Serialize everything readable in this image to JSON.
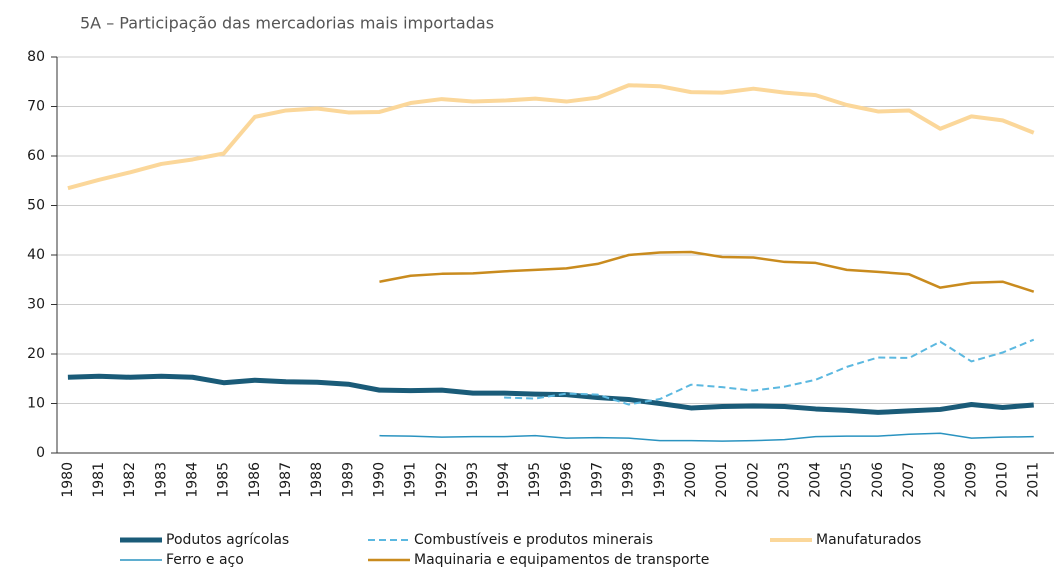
{
  "chart_data": {
    "type": "line",
    "title": "5A – Participação das mercadorias mais importadas",
    "categories": [
      "1980",
      "1981",
      "1982",
      "1983",
      "1984",
      "1985",
      "1986",
      "1987",
      "1988",
      "1989",
      "1990",
      "1991",
      "1992",
      "1993",
      "1994",
      "1995",
      "1996",
      "1997",
      "1998",
      "1999",
      "2000",
      "2001",
      "2002",
      "2003",
      "2004",
      "2005",
      "2006",
      "2007",
      "2008",
      "2009",
      "2010",
      "2011"
    ],
    "ylim": [
      0,
      80
    ],
    "yticks": [
      0,
      10,
      20,
      30,
      40,
      50,
      60,
      70,
      80
    ],
    "grid": true,
    "series": [
      {
        "name": "Podutos agrícolas",
        "color": "#1a5b78",
        "line_width": 5,
        "dashed": false,
        "values": [
          15.3,
          15.5,
          15.3,
          15.5,
          15.3,
          14.2,
          14.7,
          14.4,
          14.3,
          13.9,
          12.7,
          12.6,
          12.7,
          12.1,
          12.1,
          11.9,
          11.8,
          11.2,
          10.8,
          10.0,
          9.1,
          9.4,
          9.5,
          9.4,
          8.9,
          8.6,
          8.2,
          8.5,
          8.8,
          9.8,
          9.2,
          9.7
        ]
      },
      {
        "name": "Combustíveis e produtos minerais",
        "color": "#5bb8e0",
        "line_width": 2,
        "dashed": true,
        "values": [
          null,
          null,
          null,
          null,
          null,
          null,
          null,
          null,
          null,
          null,
          null,
          null,
          null,
          null,
          11.2,
          11.0,
          12.0,
          11.8,
          9.8,
          10.9,
          13.8,
          13.3,
          12.6,
          13.4,
          14.8,
          17.4,
          19.3,
          19.2,
          22.5,
          18.5,
          20.3,
          22.9
        ]
      },
      {
        "name": "Manufaturados",
        "color": "#fbd79a",
        "line_width": 4,
        "dashed": false,
        "values": [
          53.5,
          55.2,
          56.7,
          58.4,
          59.3,
          60.5,
          67.9,
          69.2,
          69.6,
          68.8,
          68.9,
          70.7,
          71.5,
          71.0,
          71.2,
          71.6,
          71.0,
          71.8,
          74.3,
          74.1,
          72.9,
          72.8,
          73.6,
          72.8,
          72.3,
          70.3,
          69.0,
          69.2,
          65.5,
          68.0,
          67.2,
          64.7
        ]
      },
      {
        "name": "Ferro e aço",
        "color": "#2a93c0",
        "line_width": 1.5,
        "dashed": false,
        "values": [
          null,
          null,
          null,
          null,
          null,
          null,
          null,
          null,
          null,
          null,
          3.5,
          3.4,
          3.2,
          3.3,
          3.3,
          3.5,
          3.0,
          3.1,
          3.0,
          2.5,
          2.5,
          2.4,
          2.5,
          2.7,
          3.3,
          3.4,
          3.4,
          3.8,
          4.0,
          3.0,
          3.2,
          3.3
        ]
      },
      {
        "name": "Maquinaria e equipamentos de transporte",
        "color": "#c98b1e",
        "line_width": 2.5,
        "dashed": false,
        "values": [
          null,
          null,
          null,
          null,
          null,
          null,
          null,
          null,
          null,
          null,
          34.6,
          35.8,
          36.2,
          36.3,
          36.7,
          37.0,
          37.3,
          38.2,
          40.0,
          40.5,
          40.6,
          39.6,
          39.5,
          38.6,
          38.4,
          37.0,
          36.6,
          36.1,
          33.4,
          34.4,
          34.6,
          32.6
        ]
      }
    ]
  }
}
